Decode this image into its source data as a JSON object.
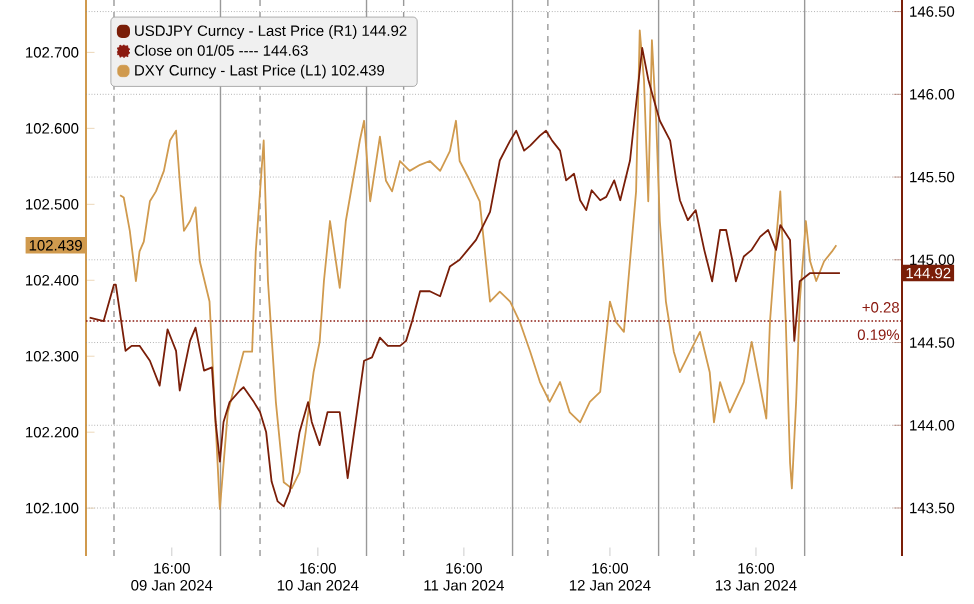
{
  "chart_data": {
    "type": "line",
    "series": [
      {
        "name": "USDJPY Curncy - Last Price (R1) 144.92",
        "color": "#7a1e08",
        "axis": "y2",
        "x": [
          "2024-01-09T02:30",
          "2024-01-09T04:48",
          "2024-01-09T06:30",
          "2024-01-09T06:48",
          "2024-01-09T08:24",
          "2024-01-09T09:24",
          "2024-01-09T10:42",
          "2024-01-09T12:24",
          "2024-01-09T14:00",
          "2024-01-09T15:18",
          "2024-01-09T16:42",
          "2024-01-09T17:18",
          "2024-01-09T19:00",
          "2024-01-09T19:54",
          "2024-01-09T21:18",
          "2024-01-09T22:36",
          "2024-01-09T23:12",
          "2024-01-09T23:54",
          "2024-01-10T00:30",
          "2024-01-10T01:30",
          "2024-01-10T03:12",
          "2024-01-10T03:48",
          "2024-01-10T05:30",
          "2024-01-10T06:30",
          "2024-01-10T07:30",
          "2024-01-10T08:24",
          "2024-01-10T09:24",
          "2024-01-10T10:24",
          "2024-01-10T11:24",
          "2024-01-10T13:00",
          "2024-01-10T14:24",
          "2024-01-10T15:00",
          "2024-01-10T16:18",
          "2024-01-10T17:36",
          "2024-01-10T19:36",
          "2024-01-10T20:54",
          "2024-01-10T22:12",
          "2024-01-10T23:36",
          "2024-01-11T00:54",
          "2024-01-11T02:12",
          "2024-01-11T03:30",
          "2024-01-11T05:30",
          "2024-01-11T06:30",
          "2024-01-11T07:30",
          "2024-01-11T08:48",
          "2024-01-11T10:24",
          "2024-01-11T12:06",
          "2024-01-11T13:42",
          "2024-01-11T15:18",
          "2024-01-11T18:00",
          "2024-01-11T20:18",
          "2024-01-11T21:54",
          "2024-01-11T23:36",
          "2024-01-12T00:36",
          "2024-01-12T01:54",
          "2024-01-12T02:54",
          "2024-01-12T04:30",
          "2024-01-12T05:30",
          "2024-01-12T06:30",
          "2024-01-12T07:48",
          "2024-01-12T08:48",
          "2024-01-12T10:06",
          "2024-01-12T11:06",
          "2024-01-12T12:06",
          "2024-01-12T13:00",
          "2024-01-12T14:24",
          "2024-01-12T15:24",
          "2024-01-12T16:42",
          "2024-01-12T17:42",
          "2024-01-12T19:18",
          "2024-01-12T21:18",
          "2024-01-12T22:18",
          "2024-01-12T23:12",
          "2024-01-13T00:12",
          "2024-01-13T01:54",
          "2024-01-13T02:54",
          "2024-01-13T03:30",
          "2024-01-13T04:48",
          "2024-01-13T06:06",
          "2024-01-13T07:30",
          "2024-01-13T08:48",
          "2024-01-13T10:06",
          "2024-01-13T11:06",
          "2024-01-13T12:06",
          "2024-01-13T12:42",
          "2024-01-13T14:00",
          "2024-01-13T15:18",
          "2024-01-13T16:42",
          "2024-01-13T18:00",
          "2024-01-13T19:18",
          "2024-01-13T20:00",
          "2024-01-13T21:36",
          "2024-01-13T22:18",
          "2024-01-13T23:12",
          "2024-01-14T00:54",
          "2024-01-14T04:12",
          "2024-01-14T05:48"
        ],
        "values": [
          144.65,
          144.63,
          144.85,
          144.85,
          144.45,
          144.48,
          144.48,
          144.39,
          144.24,
          144.58,
          144.45,
          144.21,
          144.51,
          144.59,
          144.33,
          144.35,
          144.02,
          143.78,
          144.02,
          144.14,
          144.21,
          144.23,
          144.14,
          144.08,
          143.96,
          143.66,
          143.54,
          143.51,
          143.6,
          143.96,
          144.14,
          144.02,
          143.88,
          144.08,
          144.08,
          143.68,
          144.02,
          144.39,
          144.41,
          144.53,
          144.48,
          144.48,
          144.51,
          144.63,
          144.81,
          144.81,
          144.78,
          144.96,
          145.0,
          145.12,
          145.29,
          145.6,
          145.72,
          145.78,
          145.66,
          145.69,
          145.75,
          145.78,
          145.72,
          145.66,
          145.48,
          145.52,
          145.36,
          145.3,
          145.42,
          145.36,
          145.38,
          145.48,
          145.36,
          145.6,
          146.28,
          146.09,
          145.97,
          145.84,
          145.72,
          145.48,
          145.36,
          145.24,
          145.3,
          145.06,
          144.87,
          145.18,
          145.18,
          145.0,
          144.87,
          145.02,
          145.06,
          145.14,
          145.18,
          145.06,
          145.21,
          145.12,
          144.51,
          144.87,
          144.92,
          144.92,
          144.92
        ]
      },
      {
        "name": "DXY Curncy - Last Price (L1) 102.439",
        "color": "#d09a4e",
        "x": [
          "2024-01-09T07:30",
          "2024-01-09T08:06",
          "2024-01-09T09:06",
          "2024-01-09T10:06",
          "2024-01-09T10:42",
          "2024-01-09T11:24",
          "2024-01-09T12:24",
          "2024-01-09T13:24",
          "2024-01-09T14:42",
          "2024-01-09T15:42",
          "2024-01-09T16:42",
          "2024-01-09T17:18",
          "2024-01-09T18:00",
          "2024-01-09T19:00",
          "2024-01-09T19:54",
          "2024-01-09T20:36",
          "2024-01-09T22:12",
          "2024-01-09T23:54",
          "2024-01-10T01:12",
          "2024-01-10T02:30",
          "2024-01-10T03:48",
          "2024-01-10T05:12",
          "2024-01-10T05:48",
          "2024-01-10T07:06",
          "2024-01-10T07:48",
          "2024-01-10T09:06",
          "2024-01-10T10:24",
          "2024-01-10T11:42",
          "2024-01-10T13:00",
          "2024-01-10T14:00",
          "2024-01-10T15:18",
          "2024-01-10T16:18",
          "2024-01-10T17:00",
          "2024-01-10T18:00",
          "2024-01-10T19:36",
          "2024-01-10T20:36",
          "2024-01-10T22:54",
          "2024-01-10T23:36",
          "2024-01-11T00:36",
          "2024-01-11T02:12",
          "2024-01-11T03:12",
          "2024-01-11T04:12",
          "2024-01-11T05:30",
          "2024-01-11T07:06",
          "2024-01-11T08:48",
          "2024-01-11T10:24",
          "2024-01-11T12:06",
          "2024-01-11T13:42",
          "2024-01-11T14:42",
          "2024-01-11T15:18",
          "2024-01-11T17:00",
          "2024-01-11T18:36",
          "2024-01-11T20:18",
          "2024-01-11T21:54",
          "2024-01-11T23:36",
          "2024-01-12T01:12",
          "2024-01-12T02:54",
          "2024-01-12T04:30",
          "2024-01-12T06:06",
          "2024-01-12T07:48",
          "2024-01-12T09:24",
          "2024-01-12T11:06",
          "2024-01-12T12:42",
          "2024-01-12T14:24",
          "2024-01-12T16:00",
          "2024-01-12T17:00",
          "2024-01-12T18:18",
          "2024-01-12T19:18",
          "2024-01-12T20:18",
          "2024-01-12T20:54",
          "2024-01-12T21:36",
          "2024-01-12T22:18",
          "2024-01-12T22:54",
          "2024-01-12T23:36",
          "2024-01-13T00:12",
          "2024-01-13T01:12",
          "2024-01-13T02:30",
          "2024-01-13T03:30",
          "2024-01-13T06:48",
          "2024-01-13T08:24",
          "2024-01-13T09:06",
          "2024-01-13T10:06",
          "2024-01-13T11:42",
          "2024-01-13T14:00",
          "2024-01-13T15:18",
          "2024-01-13T17:42",
          "2024-01-13T18:18",
          "2024-01-13T19:18",
          "2024-01-13T20:00",
          "2024-01-13T20:54",
          "2024-01-13T21:36",
          "2024-01-13T21:54",
          "2024-01-13T22:36",
          "2024-01-13T23:12",
          "2024-01-14T00:12",
          "2024-01-14T00:54",
          "2024-01-14T01:54",
          "2024-01-14T03:12",
          "2024-01-14T04:30",
          "2024-01-14T05:12"
        ],
        "values": [
          102.512,
          102.509,
          102.465,
          102.399,
          102.438,
          102.451,
          102.504,
          102.517,
          102.544,
          102.584,
          102.597,
          102.531,
          102.465,
          102.478,
          102.496,
          102.425,
          102.372,
          102.099,
          102.226,
          102.266,
          102.306,
          102.306,
          102.438,
          102.584,
          102.399,
          102.24,
          102.134,
          102.126,
          102.147,
          102.2,
          102.279,
          102.319,
          102.399,
          102.478,
          102.39,
          102.478,
          102.584,
          102.61,
          102.504,
          102.589,
          102.531,
          102.517,
          102.557,
          102.544,
          102.552,
          102.557,
          102.544,
          102.57,
          102.61,
          102.557,
          102.531,
          102.504,
          102.372,
          102.385,
          102.372,
          102.345,
          102.306,
          102.266,
          102.24,
          102.266,
          102.226,
          102.213,
          102.24,
          102.253,
          102.372,
          102.345,
          102.332,
          102.425,
          102.517,
          102.729,
          102.663,
          102.504,
          102.716,
          102.61,
          102.478,
          102.372,
          102.306,
          102.279,
          102.332,
          102.279,
          102.213,
          102.266,
          102.226,
          102.266,
          102.319,
          102.218,
          102.345,
          102.451,
          102.517,
          102.345,
          102.16,
          102.126,
          102.24,
          102.372,
          102.478,
          102.425,
          102.399,
          102.425,
          102.438,
          102.446
        ]
      }
    ],
    "xlim": [
      "2024-01-09T01:54",
      "2024-01-14T16:00"
    ],
    "xticks": [
      {
        "value": "2024-01-09T16:00",
        "label": "16:00 09 Jan 2024"
      },
      {
        "value": "2024-01-10T16:00",
        "label": "16:00 10 Jan 2024"
      },
      {
        "value": "2024-01-11T16:00",
        "label": "16:00 11 Jan 2024"
      },
      {
        "value": "2024-01-12T16:00",
        "label": "16:00 12 Jan 2024"
      },
      {
        "value": "2024-01-13T16:00",
        "label": "16:00 13 Jan 2024"
      }
    ],
    "ylim": [
      102.037,
      102.769
    ],
    "yticks": [
      {
        "value": 102.1,
        "label": "102.100"
      },
      {
        "value": 102.2,
        "label": "102.200"
      },
      {
        "value": 102.3,
        "label": "102.300"
      },
      {
        "value": 102.4,
        "label": "102.400"
      },
      {
        "value": 102.5,
        "label": "102.500"
      },
      {
        "value": 102.6,
        "label": "102.600"
      },
      {
        "value": 102.7,
        "label": "102.700"
      }
    ],
    "y2lim": [
      143.21,
      146.57
    ],
    "y2ticks": [
      {
        "value": 143.5,
        "label": "143.50"
      },
      {
        "value": 144,
        "label": "144.00"
      },
      {
        "value": 144.5,
        "label": "144.50"
      },
      {
        "value": 145,
        "label": "145.00"
      },
      {
        "value": 145.5,
        "label": "145.50"
      },
      {
        "value": 146,
        "label": "146.00"
      },
      {
        "value": 146.5,
        "label": "146.50"
      }
    ],
    "ref_lines": [
      {
        "axis": "y2",
        "value": 144.63,
        "label": "Close on 01/05 ---- 144.63",
        "color": "#8b1a10",
        "line_style": "dotted"
      },
      {
        "axis": "x",
        "value": "2024-01-10T00:00",
        "color": "#999999",
        "line_style": "solid"
      },
      {
        "axis": "x",
        "value": "2024-01-11T00:00",
        "color": "#999999",
        "line_style": "solid"
      },
      {
        "axis": "x",
        "value": "2024-01-12T00:00",
        "color": "#999999",
        "line_style": "solid"
      },
      {
        "axis": "x",
        "value": "2024-01-13T00:00",
        "color": "#999999",
        "line_style": "solid"
      },
      {
        "axis": "x",
        "value": "2024-01-14T00:00",
        "color": "#999999",
        "line_style": "solid"
      },
      {
        "axis": "x",
        "value": "2024-01-09T06:30",
        "color": "#999999",
        "line_style": "dashed"
      },
      {
        "axis": "x",
        "value": "2024-01-10T06:30",
        "color": "#999999",
        "line_style": "dashed"
      },
      {
        "axis": "x",
        "value": "2024-01-11T06:06",
        "color": "#999999",
        "line_style": "dashed"
      },
      {
        "axis": "x",
        "value": "2024-01-12T05:48",
        "color": "#999999",
        "line_style": "dashed"
      },
      {
        "axis": "x",
        "value": "2024-01-13T05:48",
        "color": "#999999",
        "line_style": "dashed"
      }
    ],
    "annotations": [
      "102.439",
      "144.92",
      "+0.28",
      "0.19%"
    ],
    "grid": true,
    "legend": "top left"
  }
}
